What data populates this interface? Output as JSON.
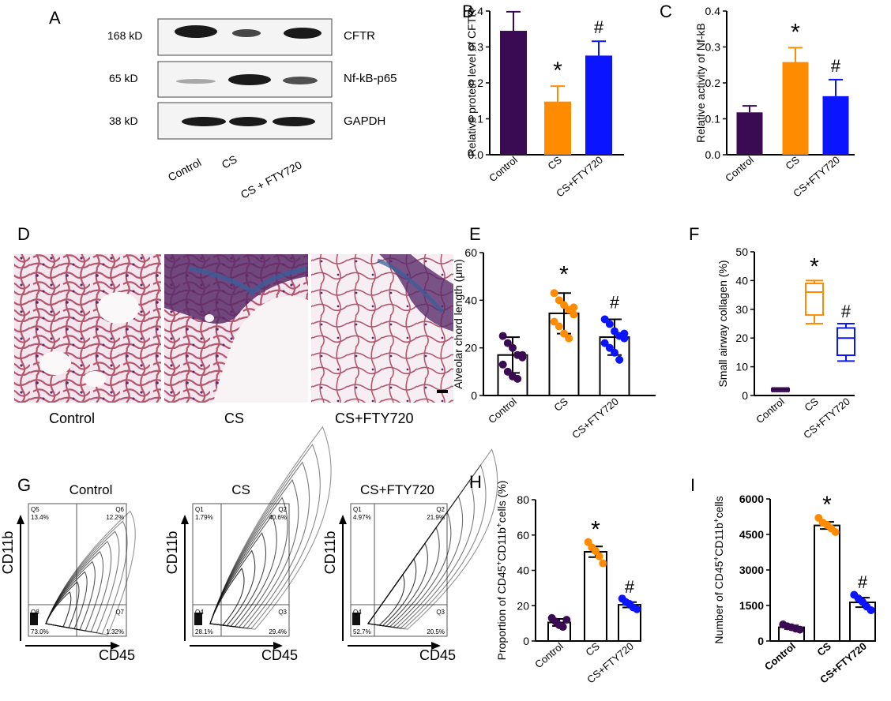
{
  "colors": {
    "control": "#3a0a52",
    "cs": "#ff8c00",
    "fty": "#0a14ff",
    "blot_band": "#1a1a1a",
    "stain_pink": "#b4576e",
    "stain_purple": "#5a2a6a",
    "stain_blue": "#3a5f9a"
  },
  "panel_a": {
    "letter": "A",
    "bands": [
      {
        "size": "168 kD",
        "name": "CFTR"
      },
      {
        "size": "65 kD",
        "name": "Nf-kB-p65"
      },
      {
        "size": "38 kD",
        "name": "GAPDH"
      }
    ],
    "lanes": [
      "Control",
      "CS",
      "CS + FTY720"
    ]
  },
  "panel_d": {
    "letter": "D",
    "captions": [
      "Control",
      "CS",
      "CS+FTY720"
    ]
  },
  "panel_g": {
    "letter": "G",
    "plots": [
      {
        "title": "Control",
        "q_tl_name": "Q5",
        "q_tl_val": "13.4%",
        "q_tr_name": "Q6",
        "q_tr_val": "12.2%",
        "q_bl_name": "Q8",
        "q_bl_val": "73.0%",
        "q_br_name": "Q7",
        "q_br_val": "1.32%"
      },
      {
        "title": "CS",
        "q_tl_name": "Q1",
        "q_tl_val": "1.79%",
        "q_tr_name": "Q2",
        "q_tr_val": "40.6%",
        "q_bl_name": "Q4",
        "q_bl_val": "28.1%",
        "q_br_name": "Q3",
        "q_br_val": "29.4%"
      },
      {
        "title": "CS+FTY720",
        "q_tl_name": "Q1",
        "q_tl_val": "4.97%",
        "q_tr_name": "Q2",
        "q_tr_val": "21.9%",
        "q_bl_name": "Q4",
        "q_bl_val": "52.7%",
        "q_br_name": "Q3",
        "q_br_val": "20.5%"
      }
    ],
    "y_axis": "CD11b",
    "x_axis": "CD45"
  },
  "chart_data": [
    {
      "panel": "B",
      "type": "bar",
      "categories": [
        "Control",
        "CS",
        "CS+FTY720"
      ],
      "values": [
        0.345,
        0.148,
        0.276
      ],
      "errors": [
        0.053,
        0.043,
        0.04
      ],
      "marks": [
        "",
        "*",
        "#"
      ],
      "ylabel": "Relative protein level of CFTR",
      "ylim": [
        0,
        0.4
      ],
      "yticks": [
        "0.0",
        "0.1",
        "0.2",
        "0.3",
        "0.4"
      ]
    },
    {
      "panel": "C",
      "type": "bar",
      "categories": [
        "Control",
        "CS",
        "CS+FTY720"
      ],
      "values": [
        0.118,
        0.258,
        0.163
      ],
      "errors": [
        0.018,
        0.04,
        0.046
      ],
      "marks": [
        "",
        "*",
        "#"
      ],
      "ylabel": "Relative activity of Nf-kB",
      "ylim": [
        0,
        0.4
      ],
      "yticks": [
        "0.0",
        "0.1",
        "0.2",
        "0.3",
        "0.4"
      ]
    },
    {
      "panel": "E",
      "type": "bar",
      "categories": [
        "Control",
        "CS",
        "CS+FTY720"
      ],
      "values": [
        17,
        34.5,
        24.5
      ],
      "errors": [
        7.5,
        8.5,
        7.5
      ],
      "points": [
        [
          25,
          22,
          20,
          17,
          16,
          13,
          10,
          8,
          7,
          17
        ],
        [
          43,
          40,
          38,
          36,
          34,
          31,
          29,
          26,
          24,
          37
        ],
        [
          32,
          30,
          27,
          25,
          24,
          22,
          20,
          18,
          15,
          26
        ]
      ],
      "marks": [
        "",
        "*",
        "#"
      ],
      "ylabel": "Alveolar chord length (μm)",
      "ylim": [
        0,
        60
      ],
      "yticks": [
        "0",
        "20",
        "40",
        "60"
      ]
    },
    {
      "panel": "F",
      "type": "box",
      "categories": [
        "Control",
        "CS",
        "CS+FTY720"
      ],
      "boxes": [
        {
          "min": 1.4,
          "q1": 1.6,
          "median": 2.0,
          "q3": 2.4,
          "max": 2.6
        },
        {
          "min": 25,
          "q1": 28,
          "median": 36,
          "q3": 39,
          "max": 40
        },
        {
          "min": 12,
          "q1": 14,
          "median": 20,
          "q3": 23.5,
          "max": 25
        }
      ],
      "marks": [
        "",
        "*",
        "#"
      ],
      "ylabel": "Small airway collagen (%)",
      "ylim": [
        0,
        50
      ],
      "yticks": [
        "0",
        "10",
        "20",
        "30",
        "40",
        "50"
      ]
    },
    {
      "panel": "H",
      "type": "bar",
      "categories": [
        "Control",
        "CS",
        "CS+FTY720"
      ],
      "values": [
        10.5,
        50.5,
        20.5
      ],
      "errors": [
        2.0,
        3.0,
        1.5
      ],
      "points": [
        [
          13,
          11,
          9,
          8,
          12
        ],
        [
          56,
          53,
          51,
          48,
          44
        ],
        [
          24,
          22,
          21,
          19,
          18
        ]
      ],
      "marks": [
        "",
        "*",
        "#"
      ],
      "ylabel_pre": "Proportion of CD45",
      "ylabel_mid": "CD11b",
      "ylabel_post": "cells (%)",
      "ylabel_sup": "+",
      "ylim": [
        0,
        80
      ],
      "yticks": [
        "0",
        "20",
        "40",
        "60",
        "80"
      ]
    },
    {
      "panel": "I",
      "type": "bar",
      "categories": [
        "Control",
        "CS",
        "CS+FTY720"
      ],
      "values": [
        580,
        4880,
        1630
      ],
      "errors": [
        80,
        150,
        200
      ],
      "points": [
        [
          700,
          620,
          580,
          520,
          480
        ],
        [
          5200,
          5000,
          4900,
          4750,
          4600
        ],
        [
          1950,
          1800,
          1650,
          1450,
          1300
        ]
      ],
      "marks": [
        "",
        "*",
        "#"
      ],
      "ylabel_pre": "Number of CD45",
      "ylabel_mid": "CD11b",
      "ylabel_post": "cells",
      "ylabel_sup": "+",
      "ylim": [
        0,
        6000
      ],
      "yticks": [
        "0",
        "1500",
        "3000",
        "4500",
        "6000"
      ]
    }
  ]
}
